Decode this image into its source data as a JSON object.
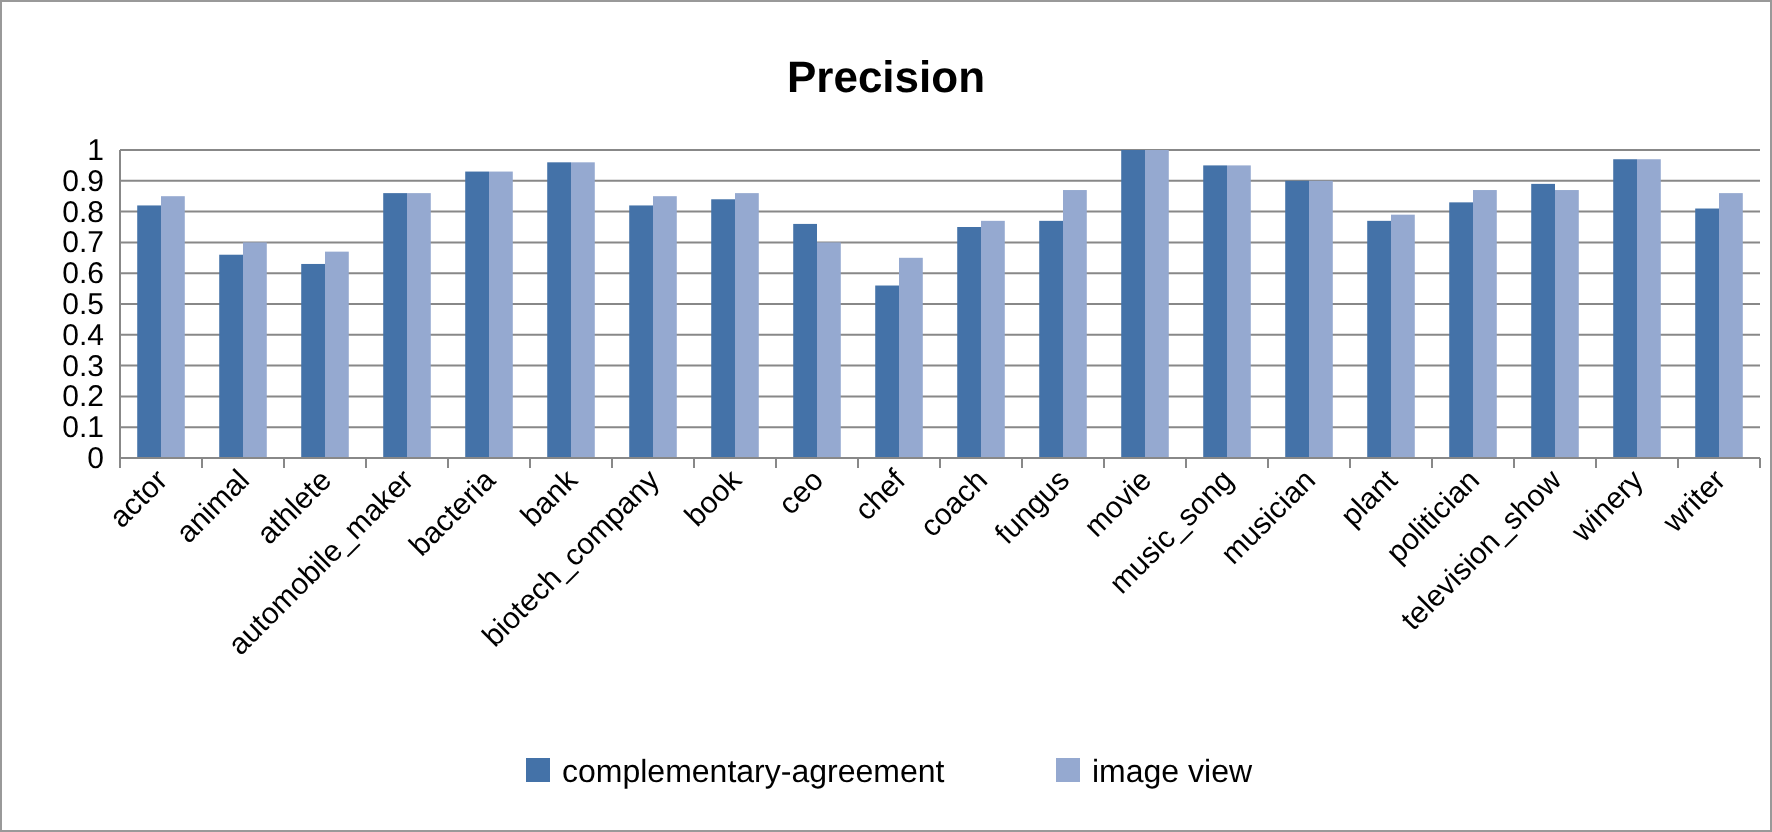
{
  "chart_data": {
    "type": "bar",
    "title": "Precision",
    "categories": [
      "actor",
      "animal",
      "athlete",
      "automobile_maker",
      "bacteria",
      "bank",
      "biotech_company",
      "book",
      "ceo",
      "chef",
      "coach",
      "fungus",
      "movie",
      "music_song",
      "musician",
      "plant",
      "politician",
      "television_show",
      "winery",
      "writer"
    ],
    "series": [
      {
        "name": "complementary-agreement",
        "color": "#4472a8",
        "values": [
          0.82,
          0.66,
          0.63,
          0.86,
          0.93,
          0.96,
          0.82,
          0.84,
          0.76,
          0.56,
          0.75,
          0.77,
          1.0,
          0.95,
          0.9,
          0.77,
          0.83,
          0.89,
          0.97,
          0.81
        ]
      },
      {
        "name": "image view",
        "color": "#95a9d0",
        "values": [
          0.85,
          0.7,
          0.67,
          0.86,
          0.93,
          0.96,
          0.85,
          0.86,
          0.7,
          0.65,
          0.77,
          0.87,
          1.0,
          0.95,
          0.9,
          0.79,
          0.87,
          0.87,
          0.97,
          0.86
        ]
      }
    ],
    "ylim": [
      0,
      1
    ],
    "yticks": [
      0,
      0.1,
      0.2,
      0.3,
      0.4,
      0.5,
      0.6,
      0.7,
      0.8,
      0.9,
      1
    ],
    "grid": "y",
    "legend": "bottom"
  }
}
